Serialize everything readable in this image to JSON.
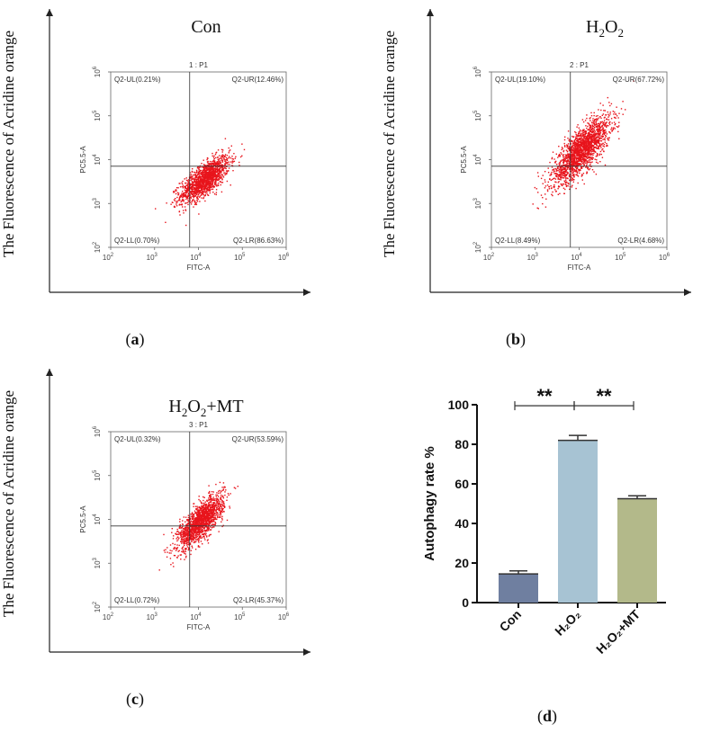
{
  "colors": {
    "dots": "#e8141c",
    "axis": "#222222",
    "con": "#6f7fa0",
    "h2o2": "#a7c3d3",
    "h2o2mt": "#b3b98a"
  },
  "y_axis_title": "The Fluorescence of Acridine orange",
  "chart_data": [
    {
      "type": "scatter",
      "panel_label": "a",
      "title": "Con",
      "gate": "1 : P1",
      "xlabel": "FITC-A",
      "ylabel": "PC5.5-A",
      "xticks": [
        "10",
        "10",
        "10",
        "10",
        "10"
      ],
      "yticks": [
        "10",
        "10",
        "10",
        "10",
        "10"
      ],
      "exponents": [
        "2",
        "3",
        "4",
        "5",
        "6"
      ],
      "quadrants": {
        "ul": "Q2-UL(0.21%)",
        "ur": "Q2-UR(12.46%)",
        "ll": "Q2-LL(0.70%)",
        "lr": "Q2-LR(86.63%)"
      },
      "cloud": {
        "cx": 4.15,
        "cy": 3.55,
        "sx": 0.28,
        "sy": 0.26,
        "rho": 0.72,
        "n": 1500
      }
    },
    {
      "type": "scatter",
      "panel_label": "b",
      "title_parts": [
        "H",
        "2",
        "O",
        "2",
        ""
      ],
      "gate": "2 : P1",
      "xlabel": "FITC-A",
      "ylabel": "PC5.5-A",
      "xticks": [
        "10",
        "10",
        "10",
        "10",
        "10"
      ],
      "yticks": [
        "10",
        "10",
        "10",
        "10",
        "10"
      ],
      "exponents": [
        "2",
        "3",
        "4",
        "5",
        "6"
      ],
      "quadrants": {
        "ul": "Q2-UL(19.10%)",
        "ur": "Q2-UR(67.72%)",
        "ll": "Q2-LL(8.49%)",
        "lr": "Q2-LR(4.68%)"
      },
      "cloud": {
        "cx": 4.05,
        "cy": 4.2,
        "sx": 0.33,
        "sy": 0.38,
        "rho": 0.78,
        "n": 1900
      }
    },
    {
      "type": "scatter",
      "panel_label": "c",
      "title_parts": [
        "H",
        "2",
        "O",
        "2",
        "+MT"
      ],
      "gate": "3 : P1",
      "xlabel": "FITC-A",
      "ylabel": "PC5.5-A",
      "xticks": [
        "10",
        "10",
        "10",
        "10",
        "10"
      ],
      "yticks": [
        "10",
        "10",
        "10",
        "10",
        "10"
      ],
      "exponents": [
        "2",
        "3",
        "4",
        "5",
        "6"
      ],
      "quadrants": {
        "ul": "Q2-UL(0.32%)",
        "ur": "Q2-UR(53.59%)",
        "ll": "Q2-LL(0.72%)",
        "lr": "Q2-LR(45.37%)"
      },
      "cloud": {
        "cx": 4.05,
        "cy": 3.95,
        "sx": 0.26,
        "sy": 0.3,
        "rho": 0.75,
        "n": 1600
      }
    },
    {
      "type": "bar",
      "panel_label": "d",
      "categories": [
        "Con",
        "H₂O₂",
        "H₂O₂+MT"
      ],
      "values": [
        14.5,
        82,
        52.5
      ],
      "errors": [
        1.5,
        2.5,
        1.5
      ],
      "ylabel": "Autophagy rate %",
      "ylim": [
        0,
        100
      ],
      "yticks": [
        "0",
        "20",
        "40",
        "60",
        "80",
        "100"
      ],
      "significance": [
        {
          "from": 0,
          "to": 1,
          "label": "**"
        },
        {
          "from": 1,
          "to": 2,
          "label": "**"
        }
      ]
    }
  ]
}
